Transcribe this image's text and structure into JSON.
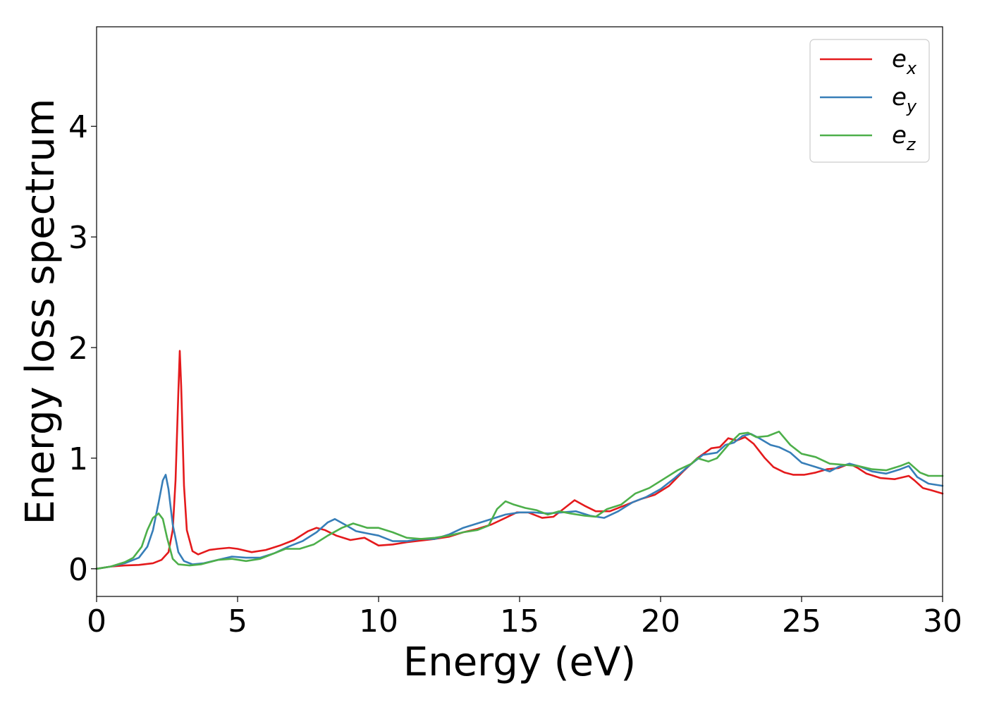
{
  "chart_data": {
    "type": "line",
    "title": "",
    "xlabel": "Energy (eV)",
    "ylabel": "Energy loss spectrum",
    "xlim": [
      0,
      30
    ],
    "ylim": [
      -0.25,
      4.9
    ],
    "xticks": [
      0,
      5,
      10,
      15,
      20,
      25,
      30
    ],
    "yticks": [
      0,
      1,
      2,
      3,
      4
    ],
    "grid": false,
    "legend_position": "top-right",
    "series": [
      {
        "name": "e",
        "subscript": "x",
        "color": "#e41a1c",
        "points": [
          [
            0,
            0
          ],
          [
            0.5,
            0.02
          ],
          [
            1,
            0.03
          ],
          [
            1.5,
            0.035
          ],
          [
            2,
            0.05
          ],
          [
            2.3,
            0.08
          ],
          [
            2.55,
            0.15
          ],
          [
            2.7,
            0.35
          ],
          [
            2.8,
            0.8
          ],
          [
            2.9,
            1.6
          ],
          [
            2.95,
            1.97
          ],
          [
            3.0,
            1.65
          ],
          [
            3.1,
            0.75
          ],
          [
            3.2,
            0.35
          ],
          [
            3.4,
            0.16
          ],
          [
            3.6,
            0.13
          ],
          [
            4,
            0.17
          ],
          [
            4.3,
            0.18
          ],
          [
            4.7,
            0.19
          ],
          [
            5,
            0.18
          ],
          [
            5.5,
            0.15
          ],
          [
            6,
            0.17
          ],
          [
            6.5,
            0.21
          ],
          [
            7,
            0.26
          ],
          [
            7.5,
            0.34
          ],
          [
            7.8,
            0.37
          ],
          [
            8.1,
            0.35
          ],
          [
            8.5,
            0.3
          ],
          [
            9,
            0.26
          ],
          [
            9.5,
            0.28
          ],
          [
            10,
            0.21
          ],
          [
            10.5,
            0.22
          ],
          [
            11,
            0.24
          ],
          [
            12,
            0.27
          ],
          [
            12.5,
            0.29
          ],
          [
            13,
            0.33
          ],
          [
            13.5,
            0.36
          ],
          [
            14,
            0.4
          ],
          [
            14.5,
            0.46
          ],
          [
            14.9,
            0.51
          ],
          [
            15.3,
            0.51
          ],
          [
            15.8,
            0.46
          ],
          [
            16.2,
            0.47
          ],
          [
            16.6,
            0.55
          ],
          [
            16.95,
            0.62
          ],
          [
            17.3,
            0.57
          ],
          [
            17.7,
            0.52
          ],
          [
            18.2,
            0.52
          ],
          [
            18.8,
            0.58
          ],
          [
            19.3,
            0.63
          ],
          [
            19.8,
            0.67
          ],
          [
            20.3,
            0.75
          ],
          [
            20.8,
            0.88
          ],
          [
            21.3,
            1.0
          ],
          [
            21.8,
            1.09
          ],
          [
            22.1,
            1.1
          ],
          [
            22.4,
            1.18
          ],
          [
            22.7,
            1.16
          ],
          [
            23.0,
            1.19
          ],
          [
            23.3,
            1.13
          ],
          [
            23.7,
            1.0
          ],
          [
            24.0,
            0.92
          ],
          [
            24.4,
            0.87
          ],
          [
            24.7,
            0.85
          ],
          [
            25.1,
            0.85
          ],
          [
            25.5,
            0.87
          ],
          [
            25.9,
            0.9
          ],
          [
            26.3,
            0.91
          ],
          [
            26.7,
            0.95
          ],
          [
            27.0,
            0.91
          ],
          [
            27.3,
            0.86
          ],
          [
            27.8,
            0.82
          ],
          [
            28.3,
            0.81
          ],
          [
            28.8,
            0.84
          ],
          [
            29.0,
            0.8
          ],
          [
            29.3,
            0.73
          ],
          [
            29.6,
            0.71
          ],
          [
            30,
            0.68
          ]
        ]
      },
      {
        "name": "e",
        "subscript": "y",
        "color": "#377eb8",
        "points": [
          [
            0,
            0
          ],
          [
            0.5,
            0.02
          ],
          [
            1,
            0.05
          ],
          [
            1.5,
            0.1
          ],
          [
            1.8,
            0.2
          ],
          [
            2.0,
            0.35
          ],
          [
            2.2,
            0.6
          ],
          [
            2.35,
            0.8
          ],
          [
            2.45,
            0.85
          ],
          [
            2.55,
            0.72
          ],
          [
            2.7,
            0.4
          ],
          [
            2.9,
            0.15
          ],
          [
            3.1,
            0.07
          ],
          [
            3.4,
            0.04
          ],
          [
            3.8,
            0.05
          ],
          [
            4.3,
            0.08
          ],
          [
            4.8,
            0.11
          ],
          [
            5.3,
            0.1
          ],
          [
            5.8,
            0.1
          ],
          [
            6.3,
            0.14
          ],
          [
            6.8,
            0.2
          ],
          [
            7.3,
            0.25
          ],
          [
            7.8,
            0.33
          ],
          [
            8.2,
            0.42
          ],
          [
            8.45,
            0.45
          ],
          [
            8.8,
            0.4
          ],
          [
            9.2,
            0.34
          ],
          [
            9.6,
            0.32
          ],
          [
            10,
            0.3
          ],
          [
            10.5,
            0.25
          ],
          [
            11,
            0.25
          ],
          [
            11.5,
            0.27
          ],
          [
            12,
            0.27
          ],
          [
            12.5,
            0.31
          ],
          [
            13,
            0.37
          ],
          [
            13.5,
            0.41
          ],
          [
            14,
            0.45
          ],
          [
            14.5,
            0.49
          ],
          [
            15,
            0.51
          ],
          [
            15.5,
            0.51
          ],
          [
            16,
            0.5
          ],
          [
            16.5,
            0.51
          ],
          [
            17,
            0.52
          ],
          [
            17.5,
            0.48
          ],
          [
            18,
            0.46
          ],
          [
            18.5,
            0.52
          ],
          [
            19,
            0.6
          ],
          [
            19.5,
            0.65
          ],
          [
            20,
            0.72
          ],
          [
            20.5,
            0.82
          ],
          [
            21,
            0.93
          ],
          [
            21.5,
            1.03
          ],
          [
            22,
            1.05
          ],
          [
            22.3,
            1.12
          ],
          [
            22.6,
            1.14
          ],
          [
            22.9,
            1.2
          ],
          [
            23.2,
            1.22
          ],
          [
            23.5,
            1.18
          ],
          [
            23.9,
            1.12
          ],
          [
            24.2,
            1.1
          ],
          [
            24.6,
            1.05
          ],
          [
            25.0,
            0.96
          ],
          [
            25.5,
            0.92
          ],
          [
            26.0,
            0.88
          ],
          [
            26.3,
            0.92
          ],
          [
            26.7,
            0.95
          ],
          [
            27.0,
            0.93
          ],
          [
            27.5,
            0.88
          ],
          [
            28.0,
            0.86
          ],
          [
            28.5,
            0.9
          ],
          [
            28.8,
            0.93
          ],
          [
            29.1,
            0.83
          ],
          [
            29.5,
            0.77
          ],
          [
            30,
            0.75
          ]
        ]
      },
      {
        "name": "e",
        "subscript": "z",
        "color": "#4daf4a",
        "points": [
          [
            0,
            0
          ],
          [
            0.5,
            0.02
          ],
          [
            1,
            0.06
          ],
          [
            1.3,
            0.1
          ],
          [
            1.6,
            0.2
          ],
          [
            1.8,
            0.35
          ],
          [
            2.0,
            0.46
          ],
          [
            2.2,
            0.5
          ],
          [
            2.35,
            0.45
          ],
          [
            2.5,
            0.28
          ],
          [
            2.7,
            0.09
          ],
          [
            2.9,
            0.04
          ],
          [
            3.3,
            0.03
          ],
          [
            3.7,
            0.04
          ],
          [
            4.3,
            0.08
          ],
          [
            4.8,
            0.09
          ],
          [
            5.3,
            0.07
          ],
          [
            5.8,
            0.09
          ],
          [
            6.3,
            0.14
          ],
          [
            6.7,
            0.18
          ],
          [
            7.2,
            0.18
          ],
          [
            7.7,
            0.22
          ],
          [
            8.2,
            0.3
          ],
          [
            8.7,
            0.37
          ],
          [
            9.1,
            0.41
          ],
          [
            9.6,
            0.37
          ],
          [
            10,
            0.37
          ],
          [
            10.5,
            0.33
          ],
          [
            11,
            0.28
          ],
          [
            11.5,
            0.27
          ],
          [
            12,
            0.28
          ],
          [
            12.5,
            0.3
          ],
          [
            13,
            0.33
          ],
          [
            13.5,
            0.35
          ],
          [
            13.9,
            0.39
          ],
          [
            14.2,
            0.54
          ],
          [
            14.5,
            0.61
          ],
          [
            14.8,
            0.58
          ],
          [
            15.2,
            0.55
          ],
          [
            15.6,
            0.53
          ],
          [
            16,
            0.49
          ],
          [
            16.4,
            0.52
          ],
          [
            16.8,
            0.5
          ],
          [
            17.3,
            0.48
          ],
          [
            17.7,
            0.47
          ],
          [
            18.1,
            0.54
          ],
          [
            18.6,
            0.58
          ],
          [
            19.1,
            0.68
          ],
          [
            19.6,
            0.73
          ],
          [
            20.1,
            0.81
          ],
          [
            20.6,
            0.89
          ],
          [
            21.1,
            0.95
          ],
          [
            21.3,
            1.0
          ],
          [
            21.7,
            0.97
          ],
          [
            22.0,
            1.0
          ],
          [
            22.4,
            1.12
          ],
          [
            22.8,
            1.22
          ],
          [
            23.1,
            1.23
          ],
          [
            23.4,
            1.19
          ],
          [
            23.8,
            1.2
          ],
          [
            24.2,
            1.24
          ],
          [
            24.6,
            1.12
          ],
          [
            25.0,
            1.04
          ],
          [
            25.5,
            1.01
          ],
          [
            26.0,
            0.95
          ],
          [
            26.5,
            0.94
          ],
          [
            27.0,
            0.93
          ],
          [
            27.5,
            0.9
          ],
          [
            28.0,
            0.89
          ],
          [
            28.5,
            0.93
          ],
          [
            28.8,
            0.96
          ],
          [
            29.2,
            0.87
          ],
          [
            29.5,
            0.84
          ],
          [
            30,
            0.84
          ]
        ]
      }
    ]
  }
}
